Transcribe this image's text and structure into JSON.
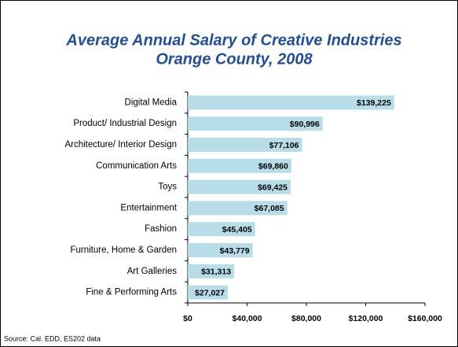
{
  "chart_data": {
    "type": "bar",
    "orientation": "horizontal",
    "title": [
      "Average Annual Salary of Creative Industries",
      "Orange County, 2008"
    ],
    "categories": [
      "Digital Media",
      "Product/ Industrial Design",
      "Architecture/ Interior Design",
      "Communication Arts",
      "Toys",
      "Entertainment",
      "Fashion",
      "Furniture, Home & Garden",
      "Art Galleries",
      "Fine & Performing Arts"
    ],
    "values": [
      139225,
      90996,
      77106,
      69860,
      69425,
      67085,
      45405,
      43779,
      31313,
      27027
    ],
    "value_labels": [
      "$139,225",
      "$90,996",
      "$77,106",
      "$69,860",
      "$69,425",
      "$67,085",
      "$45,405",
      "$43,779",
      "$31,313",
      "$27,027"
    ],
    "color": "#b7dde8",
    "xlim": [
      0,
      160000
    ],
    "xticks": [
      {
        "value": 0,
        "label": "$0"
      },
      {
        "value": 40000,
        "label": "$40,000"
      },
      {
        "value": 80000,
        "label": "$80,000"
      },
      {
        "value": 120000,
        "label": "$120,000"
      },
      {
        "value": 160000,
        "label": "$160,000"
      }
    ],
    "source": "Source: Cal. EDD, ES202 data"
  }
}
